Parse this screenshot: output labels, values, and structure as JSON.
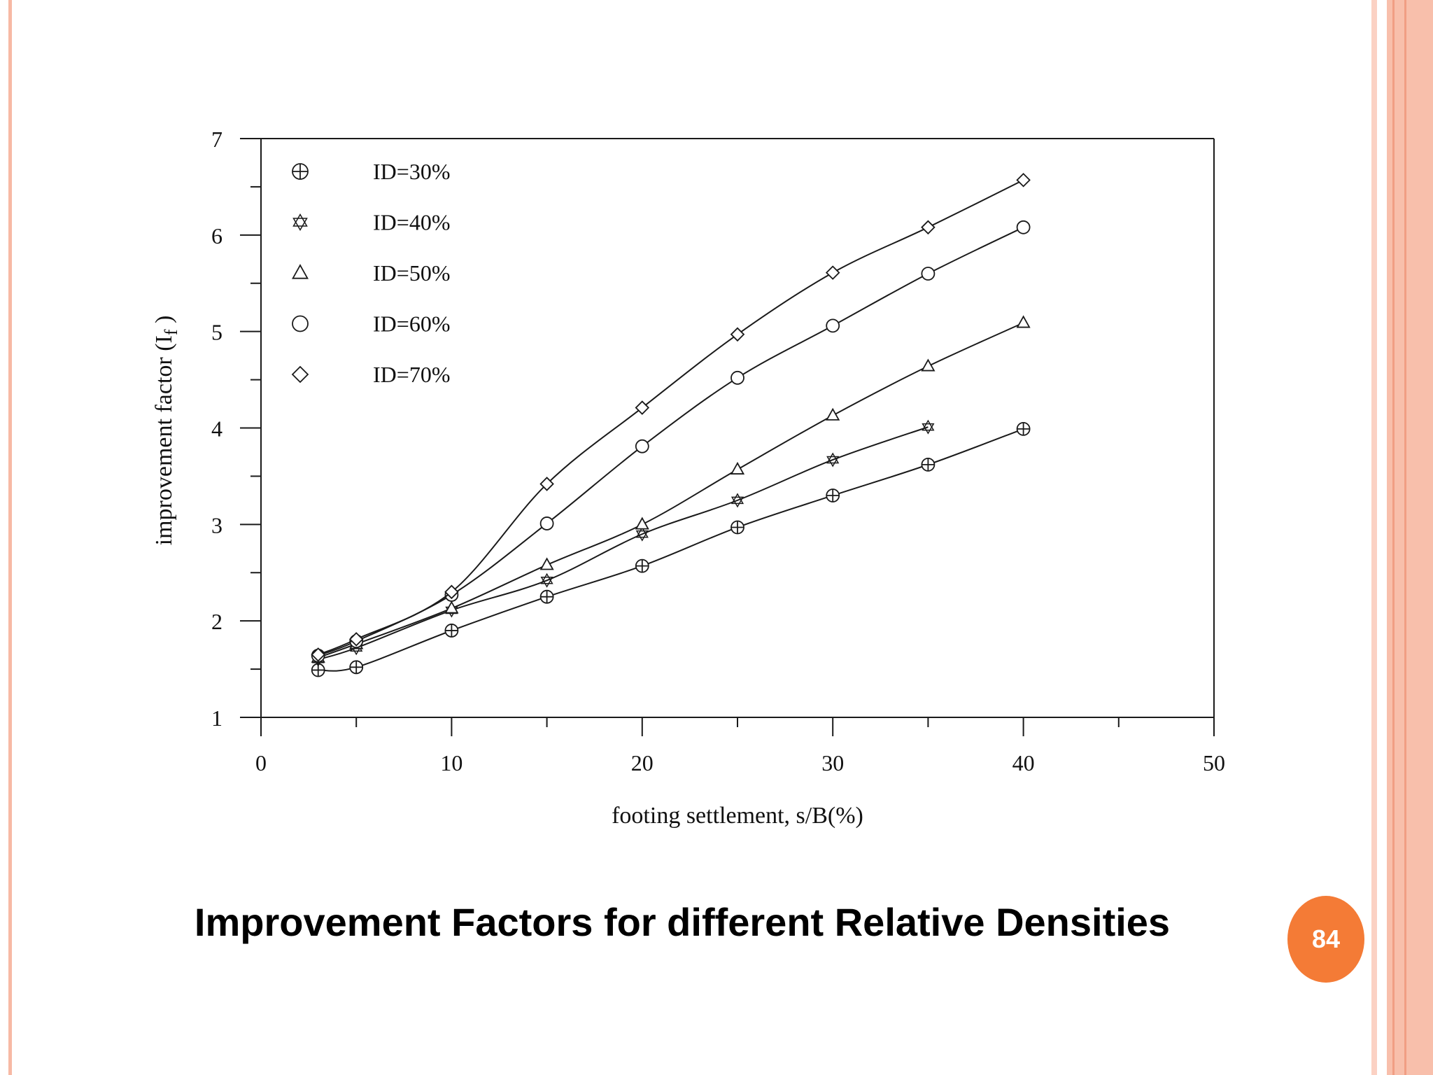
{
  "slide": {
    "title": "Improvement Factors for different Relative Densities",
    "page_number": "84"
  },
  "colors": {
    "accent": "#f47b36",
    "frame": "#f8bfab",
    "frame_line": "#f19e84"
  },
  "chart_data": {
    "type": "line",
    "title": "",
    "xlabel": "footing settlement, s/B(%)",
    "ylabel": "improvement factor (I",
    "ylabel_subscript": "f",
    "ylabel_suffix": " )",
    "xlim": [
      0,
      50
    ],
    "ylim": [
      1,
      7
    ],
    "xticks": [
      0,
      10,
      20,
      30,
      40,
      50
    ],
    "yticks": [
      1,
      2,
      3,
      4,
      5,
      6,
      7
    ],
    "legend_position": "top-left",
    "series": [
      {
        "name": "ID=30%",
        "marker": "circle-plus",
        "x": [
          3,
          5,
          10,
          15,
          20,
          25,
          30,
          35,
          40
        ],
        "y": [
          1.49,
          1.52,
          1.9,
          2.25,
          2.57,
          2.97,
          3.3,
          3.62,
          3.99
        ]
      },
      {
        "name": "ID=40%",
        "marker": "star",
        "x": [
          3,
          5,
          10,
          15,
          20,
          25,
          30,
          35
        ],
        "y": [
          1.6,
          1.72,
          2.11,
          2.42,
          2.9,
          3.25,
          3.67,
          4.01
        ]
      },
      {
        "name": "ID=50%",
        "marker": "triangle",
        "x": [
          3,
          5,
          10,
          15,
          20,
          25,
          30,
          35,
          40
        ],
        "y": [
          1.62,
          1.76,
          2.13,
          2.58,
          3.0,
          3.57,
          4.13,
          4.64,
          5.09
        ]
      },
      {
        "name": "ID=60%",
        "marker": "circle",
        "x": [
          3,
          5,
          10,
          15,
          20,
          25,
          30,
          35,
          40
        ],
        "y": [
          1.64,
          1.79,
          2.27,
          3.01,
          3.81,
          4.52,
          5.06,
          5.6,
          6.08
        ]
      },
      {
        "name": "ID=70%",
        "marker": "diamond",
        "x": [
          3,
          5,
          10,
          15,
          20,
          25,
          30,
          35,
          40
        ],
        "y": [
          1.65,
          1.81,
          2.3,
          3.42,
          4.21,
          4.97,
          5.61,
          6.08,
          6.57
        ]
      }
    ]
  }
}
